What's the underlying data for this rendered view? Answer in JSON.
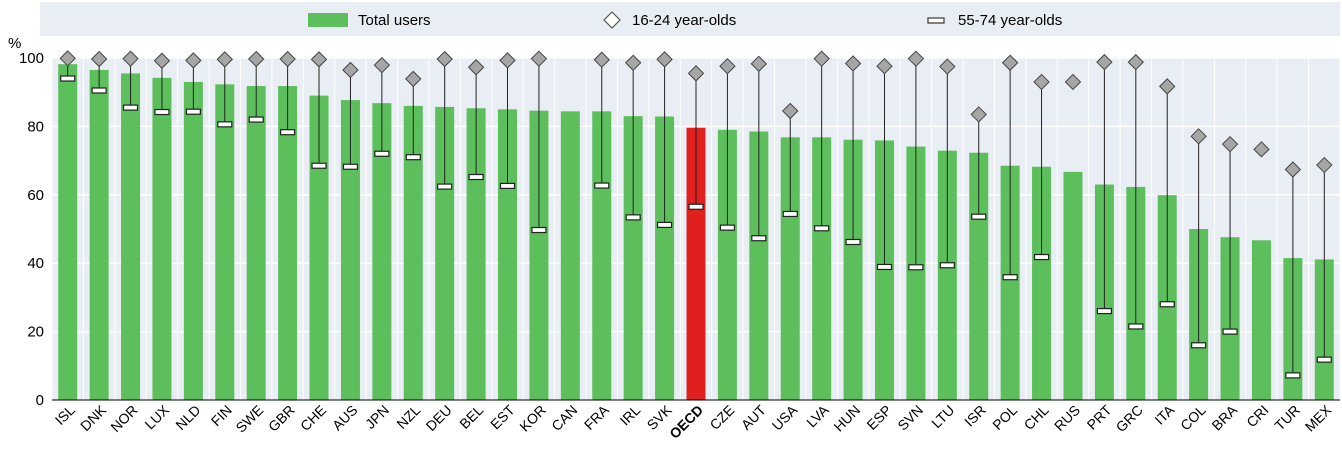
{
  "chart_data": {
    "type": "bar",
    "ylabel": "%",
    "ylim": [
      0,
      100
    ],
    "yticks": [
      0,
      20,
      40,
      60,
      80,
      100
    ],
    "grid": true,
    "legend_position": "top",
    "colors": {
      "bar": "#5cbf5c",
      "highlight_bar": "#e0201f",
      "marker_diamond": "#a6a6a6",
      "plot_background": "#e9edf4",
      "gridline": "#ffffff"
    },
    "highlight_category": "OECD",
    "categories": [
      "ISL",
      "DNK",
      "NOR",
      "LUX",
      "NLD",
      "FIN",
      "SWE",
      "GBR",
      "CHE",
      "AUS",
      "JPN",
      "NZL",
      "DEU",
      "BEL",
      "EST",
      "KOR",
      "CAN",
      "FRA",
      "IRL",
      "SVK",
      "OECD",
      "CZE",
      "AUT",
      "USA",
      "LVA",
      "HUN",
      "ESP",
      "SVN",
      "LTU",
      "ISR",
      "POL",
      "CHL",
      "RUS",
      "PRT",
      "GRC",
      "ITA",
      "COL",
      "BRA",
      "CRI",
      "TUR",
      "MEX"
    ],
    "series": [
      {
        "name": "Total users",
        "marker": "bar",
        "values": [
          98.2,
          96.5,
          95.5,
          94.2,
          93,
          92.3,
          91.8,
          91.8,
          89,
          87.7,
          86.8,
          86,
          85.7,
          85.3,
          85,
          84.6,
          84.4,
          84.4,
          83,
          82.9,
          79.6,
          79,
          78.5,
          76.8,
          76.8,
          76.1,
          75.9,
          74.1,
          72.9,
          72.3,
          68.5,
          68.2,
          66.7,
          63,
          62.3,
          59.9,
          50,
          47.6,
          46.7,
          41.5,
          41.1
        ]
      },
      {
        "name": "16-24 year-olds",
        "marker": "diamond",
        "values": [
          99.9,
          99.7,
          99.8,
          99.2,
          99.3,
          99.6,
          99.7,
          99.7,
          99.6,
          96.5,
          97.9,
          93.9,
          99.7,
          97.3,
          99.3,
          99.8,
          null,
          99.5,
          98.6,
          99.6,
          95.5,
          97.6,
          98.3,
          84.5,
          99.8,
          98.4,
          97.6,
          99.8,
          97.5,
          83.5,
          98.6,
          93,
          93,
          98.8,
          98.8,
          91.7,
          77.1,
          74.8,
          73.3,
          67.4,
          68.7
        ]
      },
      {
        "name": "55-74 year-olds",
        "marker": "dash",
        "values": [
          94,
          90.5,
          85.5,
          84.2,
          84.3,
          80.6,
          82,
          78.3,
          68.5,
          68.2,
          72,
          71,
          62.4,
          65.2,
          62.6,
          49.7,
          null,
          62.7,
          53.4,
          51.2,
          56.5,
          50.4,
          47.3,
          54.4,
          50.2,
          46.2,
          38.9,
          38.8,
          39.4,
          53.6,
          35.9,
          41.8,
          null,
          26,
          21.5,
          28,
          16,
          20,
          null,
          7.2,
          11.8
        ]
      }
    ]
  }
}
